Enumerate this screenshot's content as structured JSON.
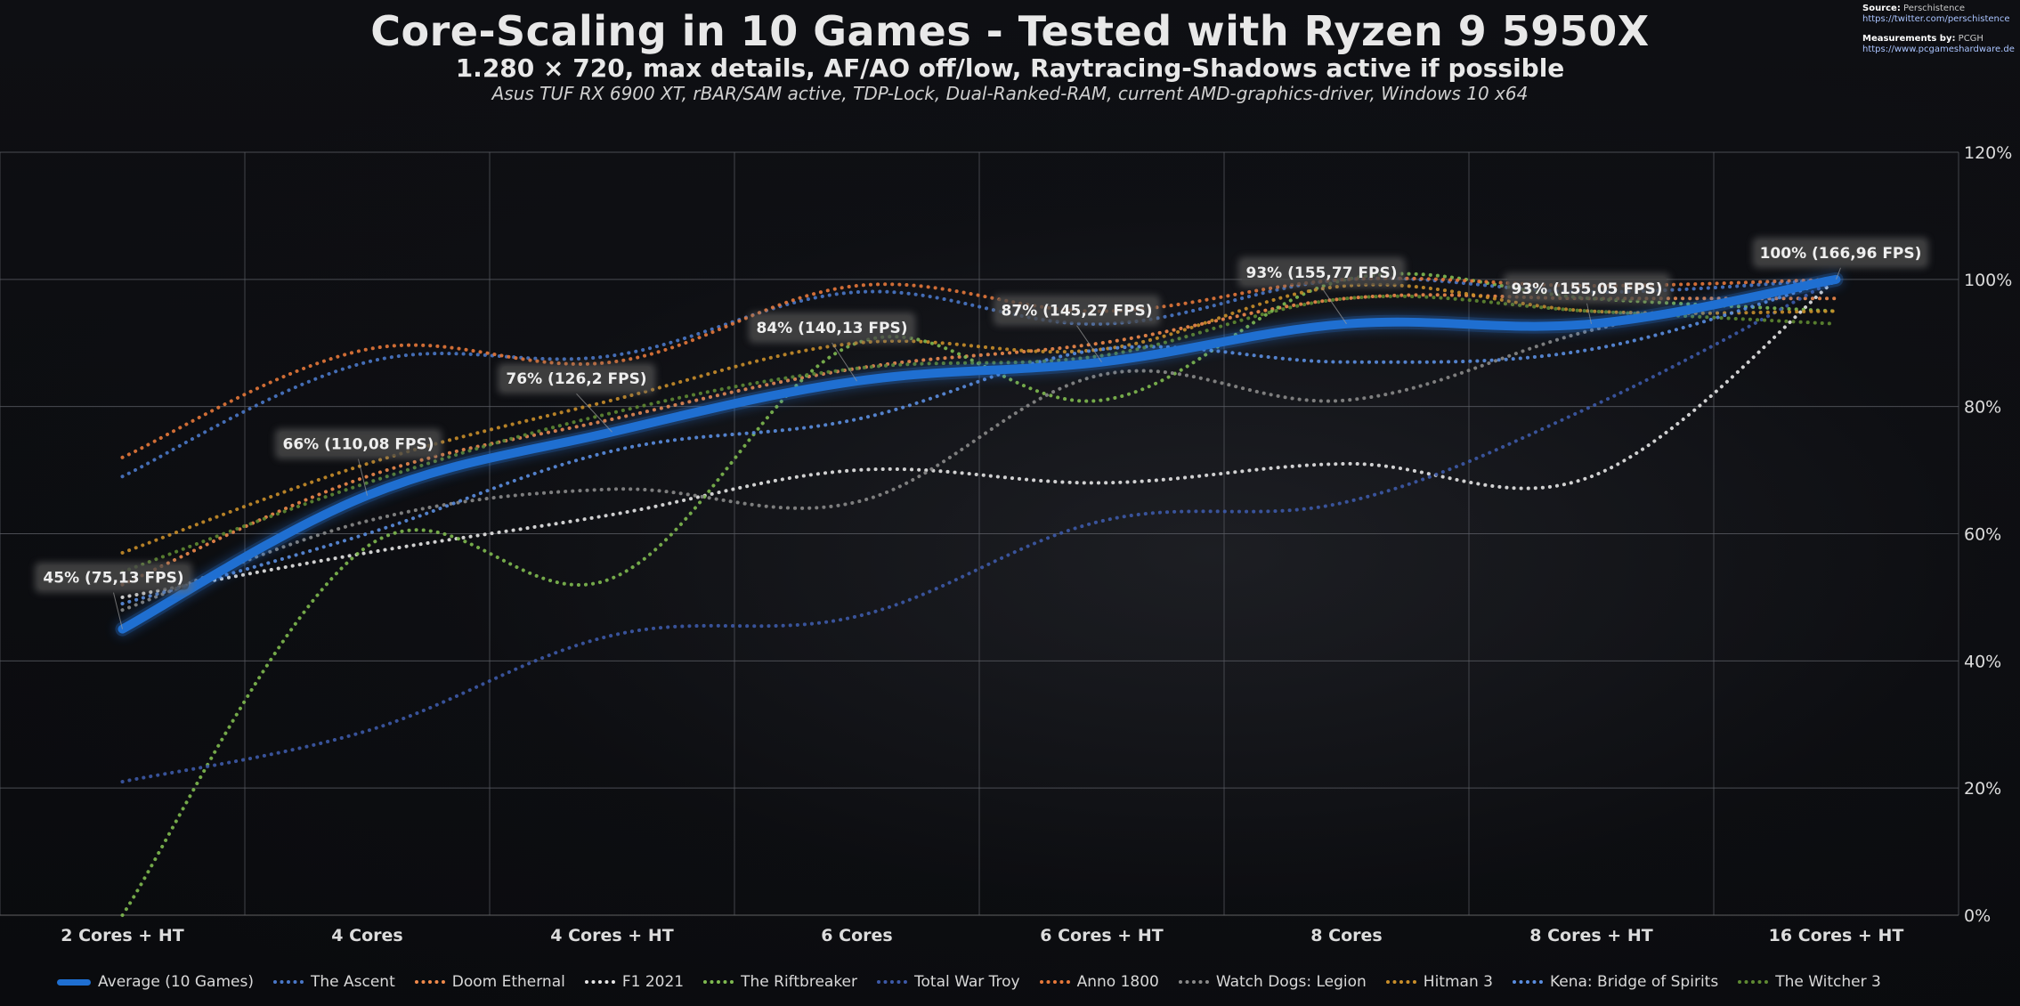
{
  "header": {
    "title": "Core-Scaling in 10 Games - Tested with Ryzen 9 5950X",
    "subtitle": "1.280 × 720, max details, AF/AO off/low, Raytracing-Shadows active if possible",
    "subtitle2": "Asus TUF RX 6900 XT, rBAR/SAM active, TDP-Lock, Dual-Ranked-RAM, current AMD-graphics-driver, Windows 10 x64"
  },
  "source": {
    "source_label": "Source:",
    "source_name": "Perschistence",
    "source_url": "https://twitter.com/perschistence",
    "measure_label": "Measurements by:",
    "measure_name": "PCGH",
    "measure_url": "https://www.pcgameshardware.de"
  },
  "chart_data": {
    "type": "line",
    "title": "Core-Scaling in 10 Games - Tested with Ryzen 9 5950X",
    "categories": [
      "2 Cores + HT",
      "4 Cores",
      "4 Cores + HT",
      "6 Cores",
      "6 Cores + HT",
      "8 Cores",
      "8 Cores + HT",
      "16 Cores + HT"
    ],
    "ylim": [
      0,
      120
    ],
    "yticks": [
      0,
      20,
      40,
      60,
      80,
      100,
      120
    ],
    "ytick_labels": [
      "0%",
      "20%",
      "40%",
      "60%",
      "80%",
      "100%",
      "120%"
    ],
    "grid": true,
    "legend_position": "bottom",
    "series": [
      {
        "name": "Average (10 Games)",
        "color": "#1f6fd1",
        "style": "solid",
        "values": [
          45,
          66,
          76,
          84,
          87,
          93,
          93,
          100
        ],
        "data_labels": [
          "45% (75,13 FPS)",
          "66% (110,08 FPS)",
          "76% (126,2 FPS)",
          "84% (140,13 FPS)",
          "87% (145,27 FPS)",
          "93% (155,77 FPS)",
          "93% (155,05 FPS)",
          "100% (166,96 FPS)"
        ]
      },
      {
        "name": "The Ascent",
        "color": "#4a78c8",
        "style": "dotted",
        "values": [
          69,
          87,
          88,
          98,
          93,
          100,
          98,
          100
        ]
      },
      {
        "name": "Doom Ethernal",
        "color": "#f08a4b",
        "style": "dotted",
        "values": [
          52,
          69,
          78,
          86,
          90,
          97,
          97,
          97
        ]
      },
      {
        "name": "F1 2021",
        "color": "#e6e6e6",
        "style": "dotted",
        "values": [
          50,
          57,
          63,
          70,
          68,
          71,
          69,
          100
        ]
      },
      {
        "name": "The Riftbreaker",
        "color": "#7fba50",
        "style": "dotted",
        "values": [
          0,
          58,
          53,
          90,
          81,
          100,
          97,
          95
        ]
      },
      {
        "name": "Total War Troy",
        "color": "#3d5aa8",
        "style": "dotted",
        "values": [
          21,
          29,
          44,
          47,
          62,
          65,
          80,
          100
        ]
      },
      {
        "name": "Anno 1800",
        "color": "#e6783a",
        "style": "dotted",
        "values": [
          72,
          89,
          87,
          99,
          95,
          100,
          99,
          100
        ]
      },
      {
        "name": "Watch Dogs: Legion",
        "color": "#8a8a8a",
        "style": "dotted",
        "values": [
          48,
          62,
          67,
          65,
          85,
          81,
          92,
          100
        ]
      },
      {
        "name": "Hitman 3",
        "color": "#c98e2a",
        "style": "dotted",
        "values": [
          57,
          71,
          81,
          90,
          89,
          99,
          95,
          95
        ]
      },
      {
        "name": "Kena: Bridge of Spirits",
        "color": "#5b8ee0",
        "style": "dotted",
        "values": [
          49,
          60,
          73,
          78,
          89,
          87,
          89,
          100
        ]
      },
      {
        "name": "The Witcher 3",
        "color": "#5f8a32",
        "style": "dotted",
        "values": [
          54,
          68,
          79,
          86,
          88,
          97,
          95,
          93
        ]
      }
    ]
  }
}
